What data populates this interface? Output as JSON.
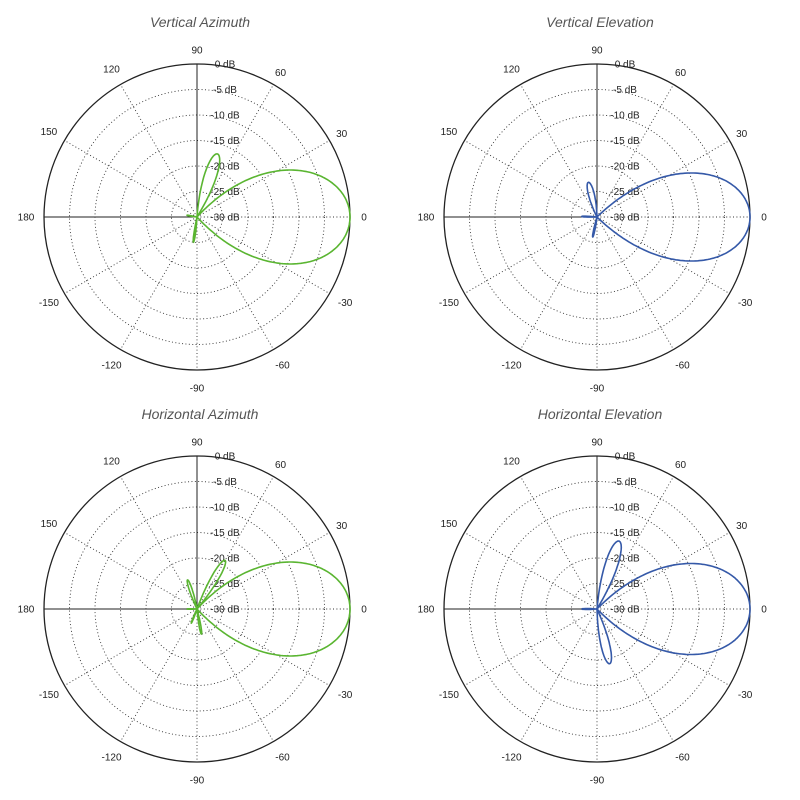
{
  "colors": {
    "green": "#5ab531",
    "blue": "#3559a8"
  },
  "chart_data": [
    {
      "type": "polar-line",
      "title": "Vertical Azimuth",
      "color": "green",
      "r_unit": "dB",
      "r_range": [
        -30,
        0
      ],
      "r_ticks": [
        "0 dB",
        "-5 dB",
        "-10 dB",
        "-15 dB",
        "-20 dB",
        "-25 dB",
        "-30 dB"
      ],
      "angle_ticks": [
        "0",
        "30",
        "60",
        "90",
        "120",
        "150",
        "180",
        "-150",
        "-120",
        "-90",
        "-60",
        "-30"
      ],
      "lobes": [
        {
          "angle_deg": 0,
          "peak_db": 0,
          "width_deg": 30
        },
        {
          "angle_deg": 72,
          "peak_db": -17,
          "width_deg": 13
        },
        {
          "angle_deg": 170,
          "peak_db": -28,
          "width_deg": 8
        },
        {
          "angle_deg": -98,
          "peak_db": -25,
          "width_deg": 7
        }
      ]
    },
    {
      "type": "polar-line",
      "title": "Vertical Elevation",
      "color": "blue",
      "r_unit": "dB",
      "r_range": [
        -30,
        0
      ],
      "r_ticks": [
        "0 dB",
        "-5 dB",
        "-10 dB",
        "-15 dB",
        "-20 dB",
        "-25 dB",
        "-30 dB"
      ],
      "angle_ticks": [
        "0",
        "30",
        "60",
        "90",
        "120",
        "150",
        "180",
        "-150",
        "-120",
        "-90",
        "-60",
        "-30"
      ],
      "lobes": [
        {
          "angle_deg": 0,
          "peak_db": 0,
          "width_deg": 28
        },
        {
          "angle_deg": 104,
          "peak_db": -23,
          "width_deg": 16
        },
        {
          "angle_deg": 178,
          "peak_db": -27,
          "width_deg": 8
        },
        {
          "angle_deg": -102,
          "peak_db": -26,
          "width_deg": 8
        }
      ]
    },
    {
      "type": "polar-line",
      "title": "Horizontal Azimuth",
      "color": "green",
      "r_unit": "dB",
      "r_range": [
        -30,
        0
      ],
      "r_ticks": [
        "0 dB",
        "-5 dB",
        "-10 dB",
        "-15 dB",
        "-20 dB",
        "-25 dB",
        "-30 dB"
      ],
      "angle_ticks": [
        "0",
        "30",
        "60",
        "90",
        "120",
        "150",
        "180",
        "-150",
        "-120",
        "-90",
        "-60",
        "-30"
      ],
      "lobes": [
        {
          "angle_deg": 0,
          "peak_db": 0,
          "width_deg": 30
        },
        {
          "angle_deg": 60,
          "peak_db": -19,
          "width_deg": 10
        },
        {
          "angle_deg": 108,
          "peak_db": -24,
          "width_deg": 10
        },
        {
          "angle_deg": 180,
          "peak_db": -28,
          "width_deg": 8
        },
        {
          "angle_deg": -80,
          "peak_db": -25,
          "width_deg": 8
        },
        {
          "angle_deg": -112,
          "peak_db": -27,
          "width_deg": 7
        }
      ]
    },
    {
      "type": "polar-line",
      "title": "Horizontal Elevation",
      "color": "blue",
      "r_unit": "dB",
      "r_range": [
        -30,
        0
      ],
      "r_ticks": [
        "0 dB",
        "-5 dB",
        "-10 dB",
        "-15 dB",
        "-20 dB",
        "-25 dB",
        "-30 dB"
      ],
      "angle_ticks": [
        "0",
        "30",
        "60",
        "90",
        "120",
        "150",
        "180",
        "-150",
        "-120",
        "-90",
        "-60",
        "-30"
      ],
      "lobes": [
        {
          "angle_deg": 0,
          "peak_db": 0,
          "width_deg": 29
        },
        {
          "angle_deg": 72,
          "peak_db": -16,
          "width_deg": 12
        },
        {
          "angle_deg": 180,
          "peak_db": -27,
          "width_deg": 8
        },
        {
          "angle_deg": -77,
          "peak_db": -19,
          "width_deg": 12
        }
      ]
    }
  ]
}
